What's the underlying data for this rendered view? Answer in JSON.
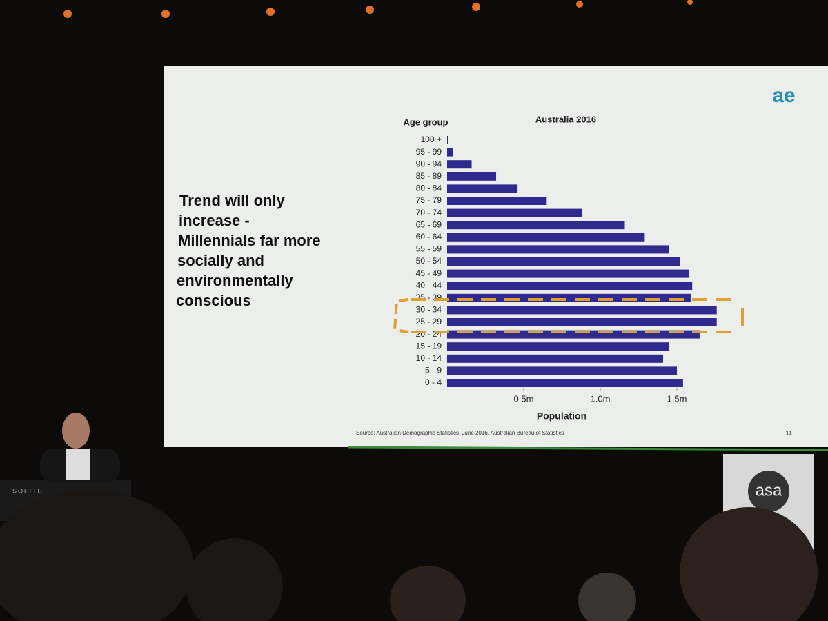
{
  "slide": {
    "text_lines": [
      "Trend will only",
      "increase -",
      "Millennials far more",
      "socially and",
      "environmentally",
      "conscious"
    ],
    "logo": "ae",
    "source": "Source: Australian Demographic Statistics, June 2016, Australian Bureau of Statistics",
    "page_number": "11"
  },
  "venue": {
    "sign": "asa",
    "podium": "SOFITE"
  },
  "chart_data": {
    "type": "hbar",
    "title": "Australia 2016",
    "y_label": "Age group",
    "x_label": "Population",
    "categories": [
      "100 +",
      "95 - 99",
      "90 - 94",
      "85 - 89",
      "80 - 84",
      "75 - 79",
      "70 - 74",
      "65 - 69",
      "60 - 64",
      "55 - 59",
      "50 - 54",
      "45 - 49",
      "40 - 44",
      "35 - 39",
      "30 - 34",
      "25 - 29",
      "20 - 24",
      "15 - 19",
      "10 - 14",
      "5 - 9",
      "0 - 4"
    ],
    "values": [
      0.005,
      0.04,
      0.16,
      0.32,
      0.46,
      0.65,
      0.88,
      1.16,
      1.29,
      1.45,
      1.52,
      1.58,
      1.6,
      1.59,
      1.76,
      1.76,
      1.65,
      1.45,
      1.41,
      1.5,
      1.54
    ],
    "color": "#2e2a8e",
    "xlim": [
      0,
      1.8
    ],
    "xticks": [
      {
        "value": 0.5,
        "label": "0.5m"
      },
      {
        "value": 1.0,
        "label": "1.0m"
      },
      {
        "value": 1.5,
        "label": "1.5m"
      }
    ]
  }
}
